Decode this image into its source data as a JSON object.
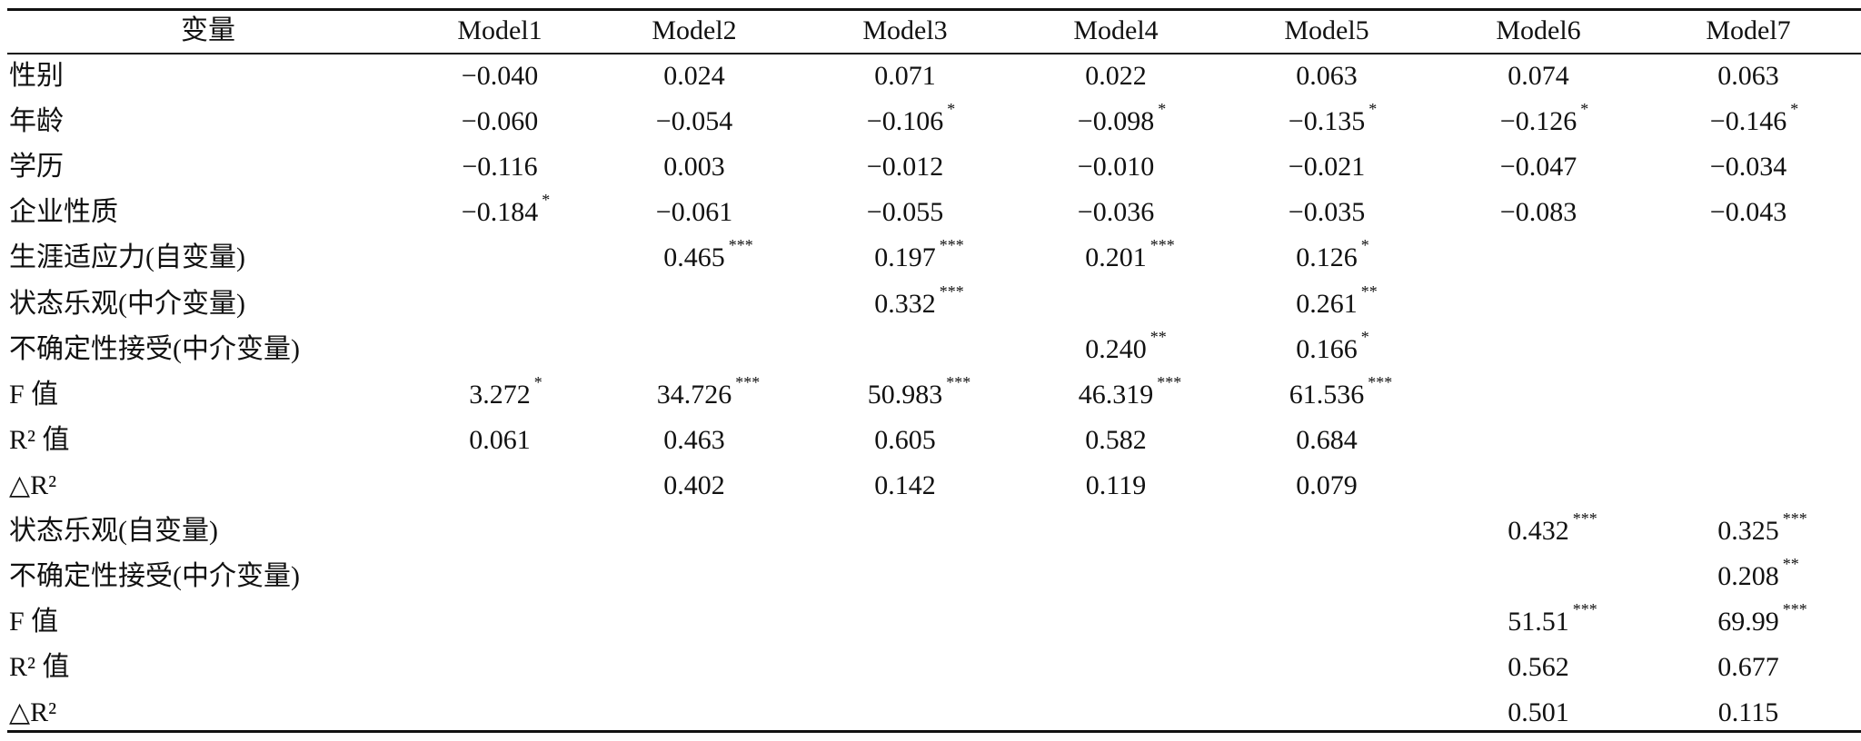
{
  "table": {
    "header": [
      "变量",
      "Model1",
      "Model2",
      "Model3",
      "Model4",
      "Model5",
      "Model6",
      "Model7"
    ],
    "rows": [
      {
        "label": "性别",
        "cells": [
          {
            "value": "−0.040"
          },
          {
            "value": "0.024"
          },
          {
            "value": "0.071"
          },
          {
            "value": "0.022"
          },
          {
            "value": "0.063"
          },
          {
            "value": "0.074"
          },
          {
            "value": "0.063"
          }
        ]
      },
      {
        "label": "年龄",
        "cells": [
          {
            "value": "−0.060"
          },
          {
            "value": "−0.054"
          },
          {
            "value": "−0.106",
            "sig": "*"
          },
          {
            "value": "−0.098",
            "sig": "*"
          },
          {
            "value": "−0.135",
            "sig": "*"
          },
          {
            "value": "−0.126",
            "sig": "*"
          },
          {
            "value": "−0.146",
            "sig": "*"
          }
        ]
      },
      {
        "label": "学历",
        "cells": [
          {
            "value": "−0.116"
          },
          {
            "value": "0.003"
          },
          {
            "value": "−0.012"
          },
          {
            "value": "−0.010"
          },
          {
            "value": "−0.021"
          },
          {
            "value": "−0.047"
          },
          {
            "value": "−0.034"
          }
        ]
      },
      {
        "label": "企业性质",
        "cells": [
          {
            "value": "−0.184",
            "sig": "*"
          },
          {
            "value": "−0.061"
          },
          {
            "value": "−0.055"
          },
          {
            "value": "−0.036"
          },
          {
            "value": "−0.035"
          },
          {
            "value": "−0.083"
          },
          {
            "value": "−0.043"
          }
        ]
      },
      {
        "label": "生涯适应力(自变量)",
        "cells": [
          null,
          {
            "value": "0.465",
            "sig": "***"
          },
          {
            "value": "0.197",
            "sig": "***"
          },
          {
            "value": "0.201",
            "sig": "***"
          },
          {
            "value": "0.126",
            "sig": "*"
          },
          null,
          null
        ]
      },
      {
        "label": "状态乐观(中介变量)",
        "cells": [
          null,
          null,
          {
            "value": "0.332",
            "sig": "***"
          },
          null,
          {
            "value": "0.261",
            "sig": "**"
          },
          null,
          null
        ]
      },
      {
        "label": "不确定性接受(中介变量)",
        "cells": [
          null,
          null,
          null,
          {
            "value": "0.240",
            "sig": "**"
          },
          {
            "value": "0.166",
            "sig": "*"
          },
          null,
          null
        ]
      },
      {
        "label": "F 值",
        "cells": [
          {
            "value": "3.272",
            "sig": "*"
          },
          {
            "value": "34.726",
            "sig": "***"
          },
          {
            "value": "50.983",
            "sig": "***"
          },
          {
            "value": "46.319",
            "sig": "***"
          },
          {
            "value": "61.536",
            "sig": "***"
          },
          null,
          null
        ]
      },
      {
        "label": "R² 值",
        "cells": [
          {
            "value": "0.061"
          },
          {
            "value": "0.463"
          },
          {
            "value": "0.605"
          },
          {
            "value": "0.582"
          },
          {
            "value": "0.684"
          },
          null,
          null
        ]
      },
      {
        "label": "△R²",
        "cells": [
          null,
          {
            "value": "0.402"
          },
          {
            "value": "0.142"
          },
          {
            "value": "0.119"
          },
          {
            "value": "0.079"
          },
          null,
          null
        ]
      },
      {
        "label": "状态乐观(自变量)",
        "cells": [
          null,
          null,
          null,
          null,
          null,
          {
            "value": "0.432",
            "sig": "***"
          },
          {
            "value": "0.325",
            "sig": "***"
          }
        ]
      },
      {
        "label": "不确定性接受(中介变量)",
        "cells": [
          null,
          null,
          null,
          null,
          null,
          null,
          {
            "value": "0.208",
            "sig": "**"
          }
        ]
      },
      {
        "label": "F 值",
        "cells": [
          null,
          null,
          null,
          null,
          null,
          {
            "value": "51.51",
            "sig": "***"
          },
          {
            "value": "69.99",
            "sig": "***"
          }
        ]
      },
      {
        "label": "R² 值",
        "cells": [
          null,
          null,
          null,
          null,
          null,
          {
            "value": "0.562"
          },
          {
            "value": "0.677"
          }
        ]
      },
      {
        "label": "△R²",
        "cells": [
          null,
          null,
          null,
          null,
          null,
          {
            "value": "0.501"
          },
          {
            "value": "0.115"
          }
        ]
      }
    ]
  }
}
